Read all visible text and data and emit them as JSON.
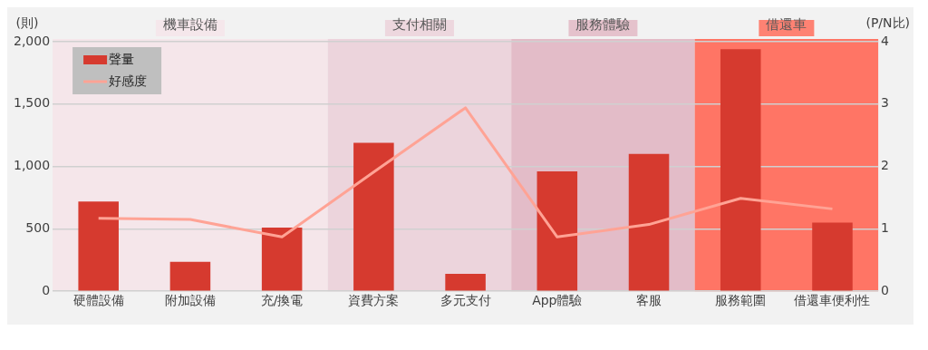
{
  "chart_data": {
    "type": "bar",
    "ylabel": "(則)",
    "y2label": "(P/N比)",
    "categories": [
      "硬體設備",
      "附加設備",
      "充/換電",
      "資費方案",
      "多元支付",
      "App體驗",
      "客服",
      "服務範圍",
      "借還車便利性"
    ],
    "series": [
      {
        "name": "聲量",
        "color": "#d63a2f",
        "values": [
          720,
          235,
          510,
          1190,
          140,
          960,
          1100,
          1940,
          550
        ]
      },
      {
        "name": "好感度",
        "type": "line",
        "axis": "y2",
        "color": "#ffa395",
        "values": [
          1.17,
          1.15,
          0.87,
          1.91,
          2.94,
          0.87,
          1.07,
          1.49,
          1.32
        ]
      }
    ],
    "ylim": [
      0,
      2000
    ],
    "yticks": [
      0,
      500,
      {
        "value": 1000,
        "label": "1,000"
      },
      {
        "value": 1500,
        "label": "1,500"
      },
      {
        "value": 2000,
        "label": "2,000"
      }
    ],
    "y2lim": [
      0,
      4
    ],
    "y2ticks": [
      0,
      1,
      2,
      3,
      4
    ],
    "bands": [
      {
        "axis": "x",
        "from": "硬體設備",
        "to": "充/換電",
        "label": "機車設備",
        "color": "#f5e6ea"
      },
      {
        "axis": "x",
        "from": "資費方案",
        "to": "多元支付",
        "label": "支付相關",
        "color": "#ecd4dc"
      },
      {
        "axis": "x",
        "from": "App體驗",
        "to": "客服",
        "label": "服務體驗",
        "color": "#e3bcc8"
      },
      {
        "axis": "x",
        "from": "服務範圍",
        "to": "借還車便利性",
        "label": "借還車",
        "color": "#ff7565"
      }
    ],
    "grid": "y",
    "legend": "top left",
    "marker": "none",
    "line_style": "solid"
  }
}
